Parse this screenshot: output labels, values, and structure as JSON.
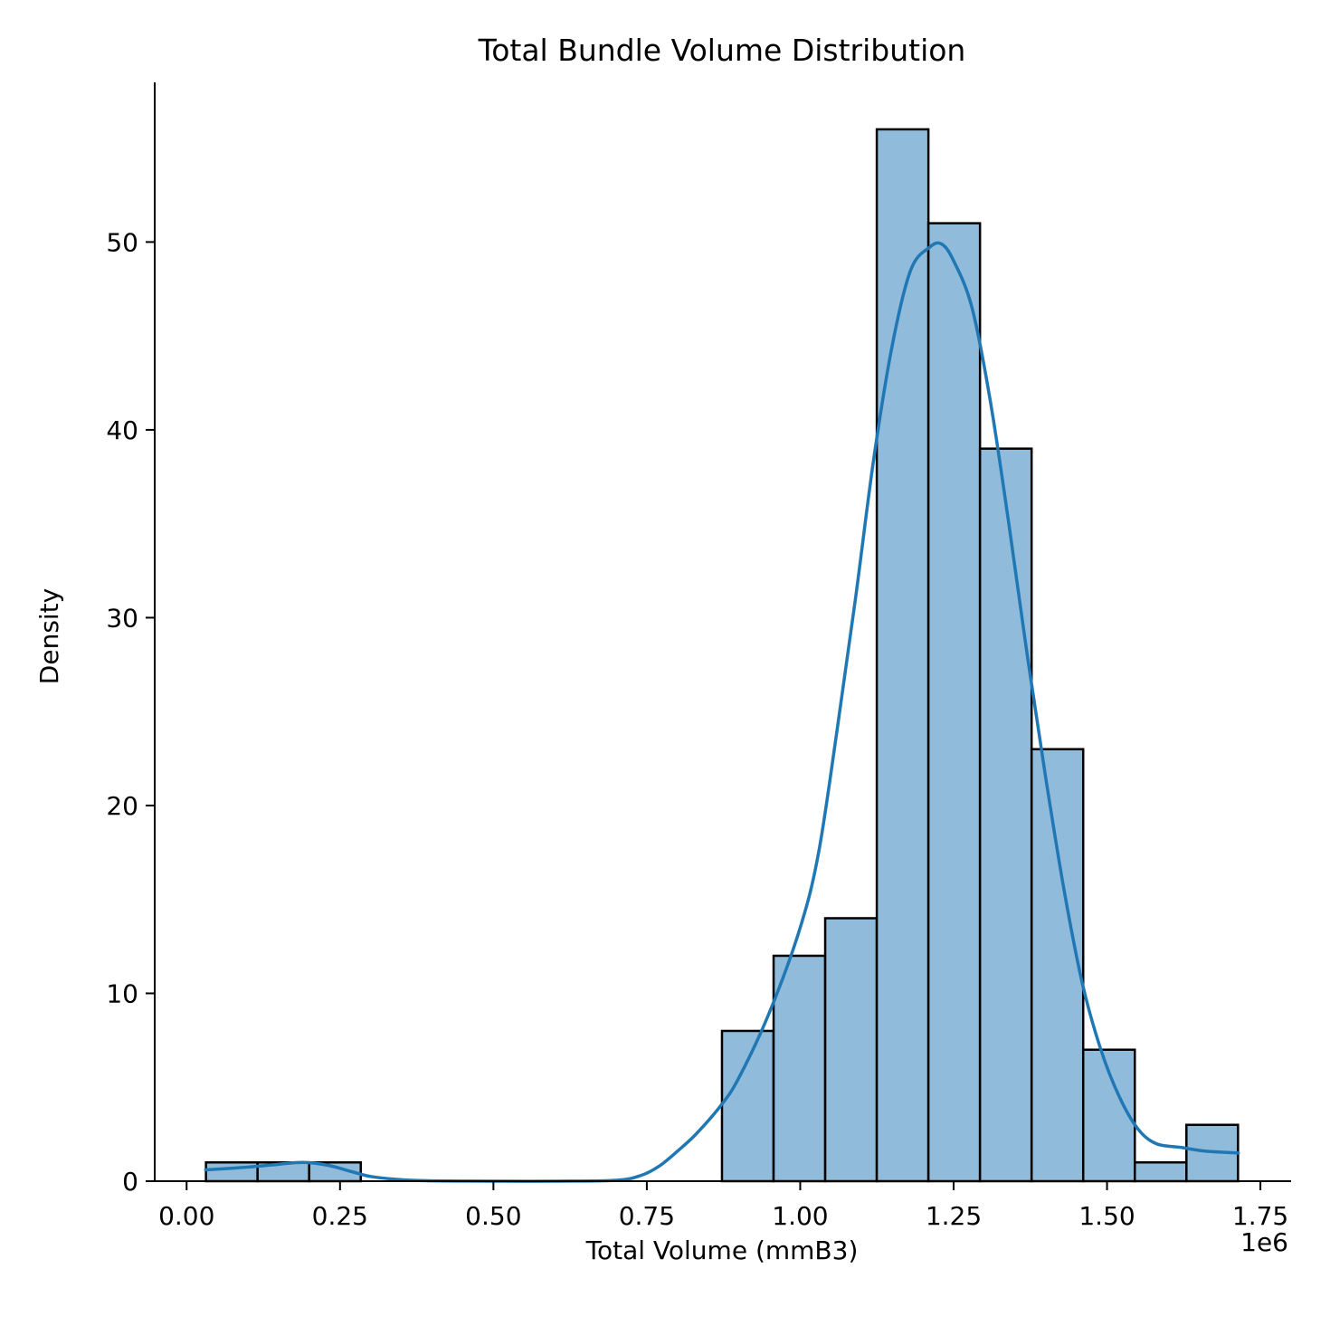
{
  "chart_data": {
    "type": "bar",
    "title": "Total Bundle Volume Distribution",
    "xlabel": "Total Volume (mmB3)",
    "ylabel": "Density",
    "x_offset_label": "1e6",
    "xlim": [
      -0.052,
      1.8
    ],
    "ylim": [
      0,
      58.5
    ],
    "x_ticks": [
      0.0,
      0.25,
      0.5,
      0.75,
      1.0,
      1.25,
      1.5,
      1.75
    ],
    "x_tick_labels": [
      "0.00",
      "0.25",
      "0.50",
      "0.75",
      "1.00",
      "1.25",
      "1.50",
      "1.75"
    ],
    "y_ticks": [
      0,
      10,
      20,
      30,
      40,
      50
    ],
    "y_tick_labels": [
      "0",
      "10",
      "20",
      "30",
      "40",
      "50"
    ],
    "bin_edges": [
      0.0315,
      0.1156,
      0.1997,
      0.2838,
      0.3679,
      0.452,
      0.5361,
      0.6202,
      0.7043,
      0.7884,
      0.8725,
      0.9566,
      1.0407,
      1.1248,
      1.2089,
      1.293,
      1.3771,
      1.4612,
      1.5453,
      1.6294,
      1.7135
    ],
    "counts": [
      1,
      1,
      1,
      0,
      0,
      0,
      0,
      0,
      0,
      0,
      8,
      12,
      14,
      56,
      51,
      39,
      23,
      7,
      1,
      3
    ],
    "kde": {
      "x": [
        0.031,
        0.1,
        0.15,
        0.19,
        0.23,
        0.27,
        0.3,
        0.35,
        0.4,
        0.5,
        0.6,
        0.7,
        0.74,
        0.77,
        0.8,
        0.83,
        0.87,
        0.9,
        0.95,
        1.0,
        1.03,
        1.06,
        1.09,
        1.12,
        1.15,
        1.18,
        1.21,
        1.23,
        1.25,
        1.28,
        1.31,
        1.34,
        1.37,
        1.4,
        1.43,
        1.46,
        1.49,
        1.52,
        1.55,
        1.58,
        1.62,
        1.66,
        1.714
      ],
      "y": [
        0.6,
        0.75,
        0.9,
        1.0,
        0.85,
        0.5,
        0.25,
        0.08,
        0.02,
        0.0,
        0.0,
        0.05,
        0.3,
        0.8,
        1.6,
        2.5,
        4.0,
        5.5,
        9.0,
        13.5,
        17.5,
        24.0,
        31.0,
        38.5,
        44.5,
        48.5,
        49.7,
        49.9,
        49.0,
        46.5,
        41.5,
        35.0,
        28.0,
        21.5,
        15.5,
        10.5,
        7.0,
        4.5,
        2.8,
        2.0,
        1.8,
        1.6,
        1.5
      ]
    },
    "colors": {
      "bar_fill": "#90bbdb",
      "bar_edge": "#000000",
      "kde_line": "#1f77b4"
    },
    "grid": false,
    "legend": "none"
  }
}
